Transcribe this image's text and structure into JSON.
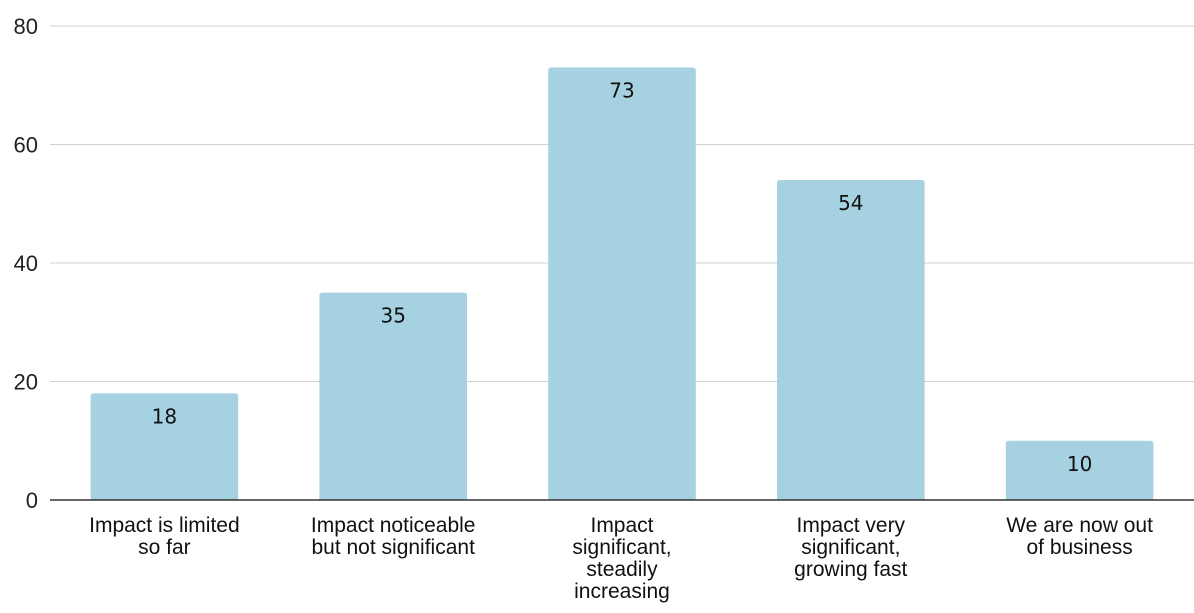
{
  "chart_data": {
    "type": "bar",
    "categories": [
      [
        "Impact is limited",
        "so far"
      ],
      [
        "Impact noticeable",
        "but not significant"
      ],
      [
        "Impact",
        "significant,",
        "steadily",
        "increasing"
      ],
      [
        "Impact very",
        "significant,",
        "growing fast"
      ],
      [
        "We are now out",
        "of business"
      ]
    ],
    "values": [
      18,
      35,
      73,
      54,
      10
    ],
    "data_labels": [
      "18",
      "35",
      "73",
      "54",
      "10"
    ],
    "ylim": [
      0,
      80
    ],
    "yticks": [
      0,
      20,
      40,
      60,
      80
    ],
    "ytick_labels": [
      "0",
      "20",
      "40",
      "60",
      "80"
    ],
    "title": "",
    "xlabel": "",
    "ylabel": "",
    "grid": true,
    "legend": "none",
    "colors": {
      "bar": "#a5d1e1",
      "grid": "#d0d0d0",
      "baseline": "#333333",
      "text": "#111111"
    }
  }
}
